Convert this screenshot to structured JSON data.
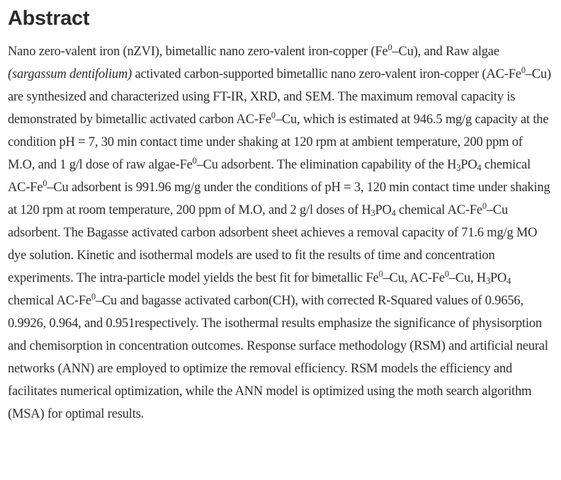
{
  "colors": {
    "background": "#ffffff",
    "heading_text": "#2b2b2b",
    "body_text": "#2e2e2e"
  },
  "abstract": {
    "heading": "Abstract",
    "segments": [
      {
        "t": "Nano zero-valent iron (nZVI), bimetallic nano zero-valent iron-copper (Fe"
      },
      {
        "t": "0",
        "style": "sup"
      },
      {
        "t": "–Cu), and Raw algae "
      },
      {
        "t": "(sargassum dentifolium)",
        "style": "italic"
      },
      {
        "t": " activated carbon-supported bimetallic nano zero-valent iron-copper (AC-Fe"
      },
      {
        "t": "0",
        "style": "sup"
      },
      {
        "t": "–Cu) are synthesized and characterized using FT-IR, XRD, and SEM. The maximum removal capacity is demonstrated by bimetallic activated carbon AC-Fe"
      },
      {
        "t": "0",
        "style": "sup"
      },
      {
        "t": "–Cu, which is estimated at 946.5 mg/g capacity at the condition pH = 7, 30 min contact time under shaking at 120 rpm at ambient temperature, 200 ppm of M.O, and 1 g/l dose of raw algae-Fe"
      },
      {
        "t": "0",
        "style": "sup"
      },
      {
        "t": "–Cu adsorbent. The elimination capability of the H"
      },
      {
        "t": "3",
        "style": "sub"
      },
      {
        "t": "PO"
      },
      {
        "t": "4",
        "style": "sub"
      },
      {
        "t": " chemical AC-Fe"
      },
      {
        "t": "0",
        "style": "sup"
      },
      {
        "t": "–Cu adsorbent is 991.96 mg/g under the conditions of pH = 3, 120 min contact time under shaking at 120 rpm at room temperature, 200 ppm of M.O, and 2 g/l doses of H"
      },
      {
        "t": "3",
        "style": "sub"
      },
      {
        "t": "PO"
      },
      {
        "t": "4",
        "style": "sub"
      },
      {
        "t": " chemical AC-Fe"
      },
      {
        "t": "0",
        "style": "sup"
      },
      {
        "t": "–Cu adsorbent. The Bagasse activated carbon adsorbent sheet achieves a removal capacity of 71.6 mg/g MO dye solution. Kinetic and isothermal models are used to fit the results of time and concentration experiments. The intra-particle model yields the best fit for bimetallic Fe"
      },
      {
        "t": "0",
        "style": "sup"
      },
      {
        "t": "–Cu, AC-Fe"
      },
      {
        "t": "0",
        "style": "sup"
      },
      {
        "t": "–Cu, H"
      },
      {
        "t": "3",
        "style": "sub"
      },
      {
        "t": "PO"
      },
      {
        "t": "4",
        "style": "sub"
      },
      {
        "t": " chemical AC-Fe"
      },
      {
        "t": "0",
        "style": "sup"
      },
      {
        "t": "–Cu and bagasse activated carbon(CH), with corrected R-Squared values of 0.9656, 0.9926, 0.964, and 0.951respectively. The isothermal results emphasize the significance of physisorption and chemisorption in concentration outcomes. Response surface methodology (RSM) and artificial neural networks (ANN) are employed to optimize the removal efficiency. RSM models the efficiency and facilitates numerical optimization, while the ANN model is optimized using the moth search algorithm (MSA) for optimal results."
      }
    ]
  }
}
